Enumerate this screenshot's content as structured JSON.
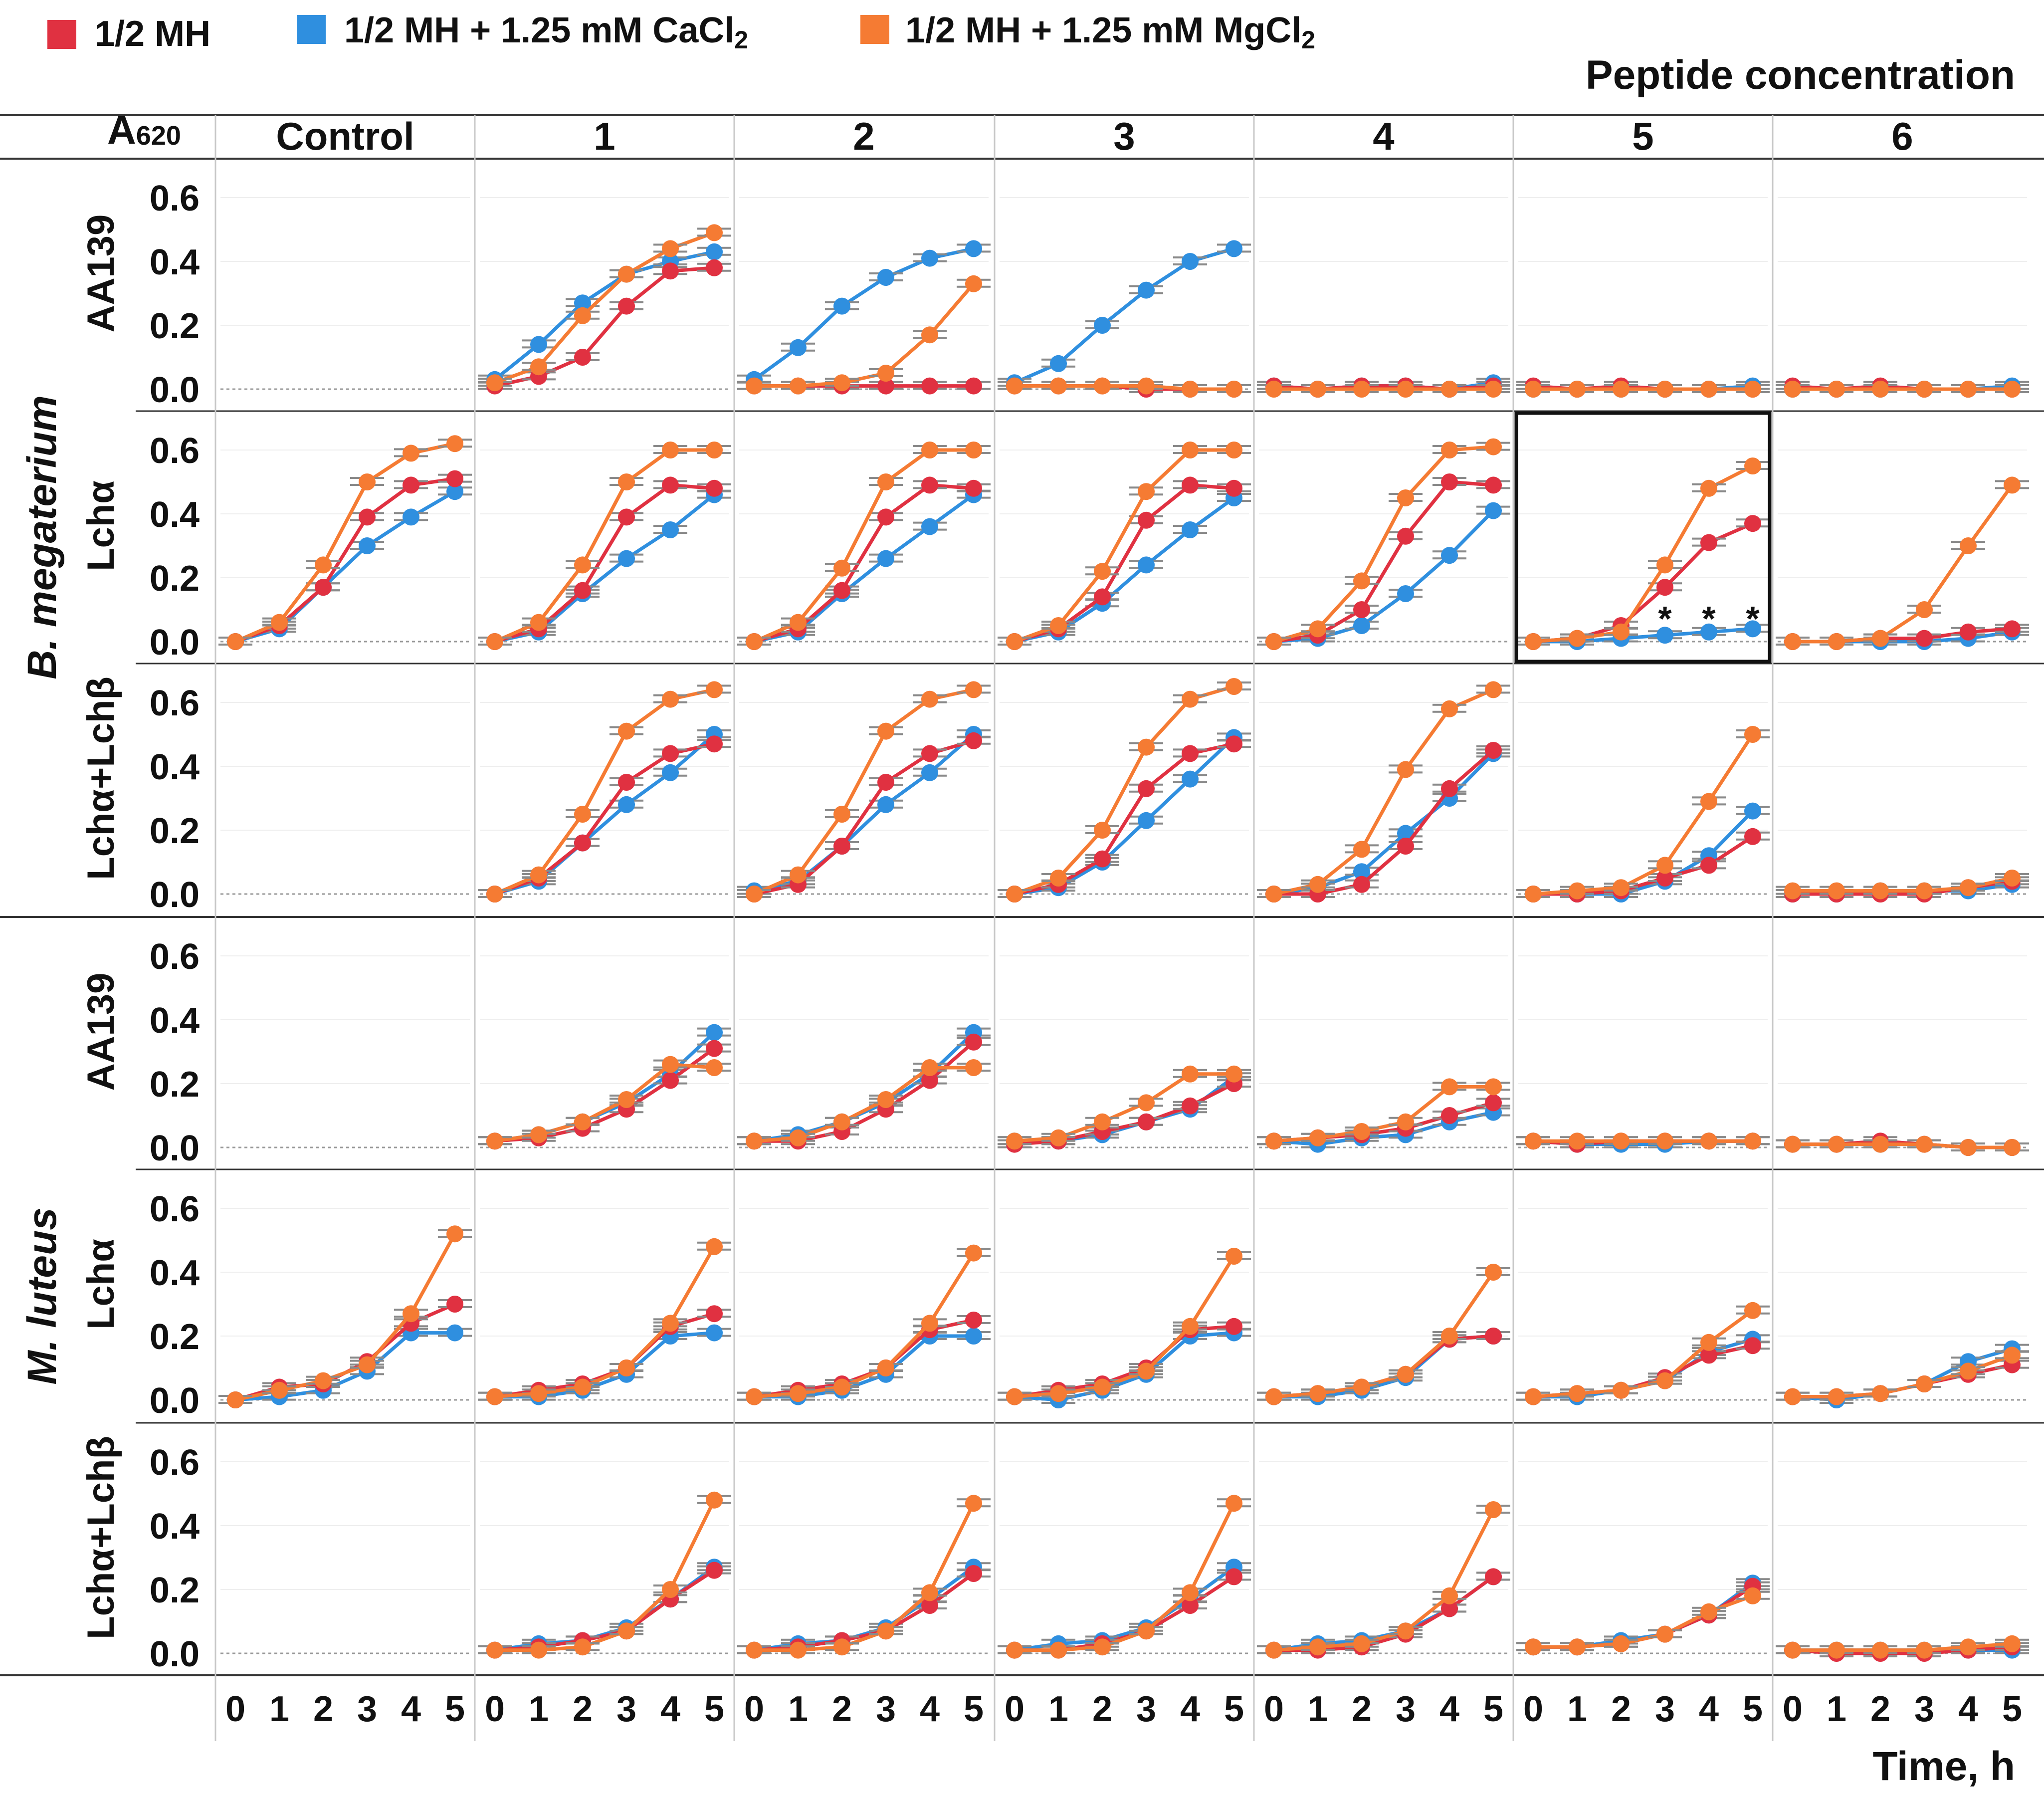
{
  "legend": [
    {
      "label": "1/2 MH",
      "label_sub": "",
      "color": "#e03141"
    },
    {
      "label": "1/2 MH + 1.25 mM CaCl",
      "label_sub": "2",
      "color": "#2f8fdf"
    },
    {
      "label": "1/2 MH + 1.25 mM MgCl",
      "label_sub": "2",
      "color": "#f57b33"
    }
  ],
  "header": {
    "y_label_main": "A",
    "y_label_sub": "620",
    "peptide_title": "Peptide concentration",
    "columns": [
      "Control",
      "1",
      "2",
      "3",
      "4",
      "5",
      "6"
    ]
  },
  "footer": {
    "x_ticks": [
      "0",
      "1",
      "2",
      "3",
      "4",
      "5"
    ],
    "x_title": "Time, h"
  },
  "y_ticks": [
    "0.6",
    "0.4",
    "0.2",
    "0.0"
  ],
  "organisms": [
    {
      "name": "B. megaterium",
      "rows": [
        0,
        1,
        2
      ]
    },
    {
      "name": "M. luteus",
      "rows": [
        3,
        4,
        5
      ]
    }
  ],
  "row_labels": [
    "AA139",
    "Lchα",
    "Lchα+Lchβ",
    "AA139",
    "Lchα",
    "Lchα+Lchβ"
  ],
  "highlight": {
    "row": 1,
    "col": 5,
    "annotation": "*",
    "annotation_x": [
      3,
      4,
      5
    ]
  },
  "chart_data": {
    "type": "line",
    "title": "",
    "xlabel": "Time, h",
    "ylabel": "A620",
    "x": [
      0,
      1,
      2,
      3,
      4,
      5
    ],
    "ylim": [
      -0.02,
      0.68
    ],
    "series_names": [
      "1/2 MH",
      "1/2 MH + 1.25 mM CaCl2",
      "1/2 MH + 1.25 mM MgCl2"
    ],
    "series_colors": [
      "#e03141",
      "#2f8fdf",
      "#f57b33"
    ],
    "panels": [
      {
        "row": 0,
        "col": 0,
        "series": null
      },
      {
        "row": 0,
        "col": 1,
        "series": [
          [
            0.01,
            0.04,
            0.1,
            0.26,
            0.37,
            0.38
          ],
          [
            0.03,
            0.14,
            0.27,
            0.36,
            0.4,
            0.43
          ],
          [
            0.02,
            0.07,
            0.23,
            0.36,
            0.44,
            0.49
          ]
        ]
      },
      {
        "row": 0,
        "col": 2,
        "series": [
          [
            0.01,
            0.01,
            0.01,
            0.01,
            0.01,
            0.01
          ],
          [
            0.03,
            0.13,
            0.26,
            0.35,
            0.41,
            0.44
          ],
          [
            0.01,
            0.01,
            0.02,
            0.05,
            0.17,
            0.33
          ]
        ]
      },
      {
        "row": 0,
        "col": 3,
        "series": [
          [
            0.01,
            0.01,
            0.01,
            0.0,
            0.0,
            0.0
          ],
          [
            0.02,
            0.08,
            0.2,
            0.31,
            0.4,
            0.44
          ],
          [
            0.01,
            0.01,
            0.01,
            0.01,
            0.0,
            0.0
          ]
        ]
      },
      {
        "row": 0,
        "col": 4,
        "series": [
          [
            0.01,
            0.0,
            0.01,
            0.01,
            0.0,
            0.01
          ],
          [
            0.01,
            0.0,
            0.01,
            0.01,
            0.0,
            0.02
          ],
          [
            0.0,
            0.0,
            0.0,
            0.0,
            0.0,
            0.0
          ]
        ]
      },
      {
        "row": 0,
        "col": 5,
        "series": [
          [
            0.01,
            0.0,
            0.01,
            0.0,
            0.0,
            0.0
          ],
          [
            0.0,
            0.0,
            0.0,
            0.0,
            0.0,
            0.01
          ],
          [
            0.0,
            0.0,
            0.0,
            0.0,
            0.0,
            0.0
          ]
        ]
      },
      {
        "row": 0,
        "col": 6,
        "series": [
          [
            0.01,
            0.0,
            0.01,
            0.0,
            0.0,
            0.0
          ],
          [
            0.0,
            0.0,
            0.0,
            0.0,
            0.0,
            0.01
          ],
          [
            0.0,
            0.0,
            0.0,
            0.0,
            0.0,
            0.0
          ]
        ]
      },
      {
        "row": 1,
        "col": 0,
        "series": [
          [
            0.0,
            0.05,
            0.17,
            0.39,
            0.49,
            0.51
          ],
          [
            0.0,
            0.04,
            0.17,
            0.3,
            0.39,
            0.47
          ],
          [
            0.0,
            0.06,
            0.24,
            0.5,
            0.59,
            0.62
          ]
        ]
      },
      {
        "row": 1,
        "col": 1,
        "series": [
          [
            0.0,
            0.04,
            0.16,
            0.39,
            0.49,
            0.48
          ],
          [
            0.0,
            0.03,
            0.15,
            0.26,
            0.35,
            0.46
          ],
          [
            0.0,
            0.06,
            0.24,
            0.5,
            0.6,
            0.6
          ]
        ]
      },
      {
        "row": 1,
        "col": 2,
        "series": [
          [
            0.0,
            0.04,
            0.16,
            0.39,
            0.49,
            0.48
          ],
          [
            0.0,
            0.03,
            0.15,
            0.26,
            0.36,
            0.46
          ],
          [
            0.0,
            0.06,
            0.23,
            0.5,
            0.6,
            0.6
          ]
        ]
      },
      {
        "row": 1,
        "col": 3,
        "series": [
          [
            0.0,
            0.04,
            0.14,
            0.38,
            0.49,
            0.48
          ],
          [
            0.0,
            0.03,
            0.12,
            0.24,
            0.35,
            0.45
          ],
          [
            0.0,
            0.05,
            0.22,
            0.47,
            0.6,
            0.6
          ]
        ]
      },
      {
        "row": 1,
        "col": 4,
        "series": [
          [
            0.0,
            0.02,
            0.1,
            0.33,
            0.5,
            0.49
          ],
          [
            0.0,
            0.01,
            0.05,
            0.15,
            0.27,
            0.41
          ],
          [
            0.0,
            0.04,
            0.19,
            0.45,
            0.6,
            0.61
          ]
        ]
      },
      {
        "row": 1,
        "col": 5,
        "series": [
          [
            0.0,
            0.01,
            0.05,
            0.17,
            0.31,
            0.37
          ],
          [
            0.0,
            0.0,
            0.01,
            0.02,
            0.03,
            0.04
          ],
          [
            0.0,
            0.01,
            0.03,
            0.24,
            0.48,
            0.55
          ]
        ]
      },
      {
        "row": 1,
        "col": 6,
        "series": [
          [
            0.0,
            0.0,
            0.01,
            0.01,
            0.03,
            0.04
          ],
          [
            0.0,
            0.0,
            0.0,
            0.0,
            0.01,
            0.03
          ],
          [
            0.0,
            0.0,
            0.01,
            0.1,
            0.3,
            0.49
          ]
        ]
      },
      {
        "row": 2,
        "col": 0,
        "series": null
      },
      {
        "row": 2,
        "col": 1,
        "series": [
          [
            0.0,
            0.05,
            0.16,
            0.35,
            0.44,
            0.47
          ],
          [
            0.0,
            0.04,
            0.16,
            0.28,
            0.38,
            0.5
          ],
          [
            0.0,
            0.06,
            0.25,
            0.51,
            0.61,
            0.64
          ]
        ]
      },
      {
        "row": 2,
        "col": 2,
        "series": [
          [
            0.0,
            0.03,
            0.15,
            0.35,
            0.44,
            0.48
          ],
          [
            0.01,
            0.04,
            0.15,
            0.28,
            0.38,
            0.5
          ],
          [
            0.0,
            0.06,
            0.25,
            0.51,
            0.61,
            0.64
          ]
        ]
      },
      {
        "row": 2,
        "col": 3,
        "series": [
          [
            0.0,
            0.03,
            0.11,
            0.33,
            0.44,
            0.47
          ],
          [
            0.0,
            0.02,
            0.1,
            0.23,
            0.36,
            0.49
          ],
          [
            0.0,
            0.05,
            0.2,
            0.46,
            0.61,
            0.65
          ]
        ]
      },
      {
        "row": 2,
        "col": 4,
        "series": [
          [
            0.0,
            0.0,
            0.03,
            0.15,
            0.33,
            0.45
          ],
          [
            0.0,
            0.02,
            0.07,
            0.19,
            0.3,
            0.44
          ],
          [
            0.0,
            0.03,
            0.14,
            0.39,
            0.58,
            0.64
          ]
        ]
      },
      {
        "row": 2,
        "col": 5,
        "series": [
          [
            0.0,
            0.0,
            0.01,
            0.05,
            0.09,
            0.18
          ],
          [
            0.0,
            0.0,
            0.0,
            0.04,
            0.12,
            0.26
          ],
          [
            0.0,
            0.01,
            0.02,
            0.09,
            0.29,
            0.5
          ]
        ]
      },
      {
        "row": 2,
        "col": 6,
        "series": [
          [
            0.0,
            0.0,
            0.0,
            0.0,
            0.02,
            0.04
          ],
          [
            0.0,
            0.0,
            0.01,
            0.01,
            0.01,
            0.03
          ],
          [
            0.01,
            0.01,
            0.01,
            0.01,
            0.02,
            0.05
          ]
        ]
      },
      {
        "row": 3,
        "col": 0,
        "series": null
      },
      {
        "row": 3,
        "col": 1,
        "series": [
          [
            0.02,
            0.03,
            0.06,
            0.12,
            0.21,
            0.31
          ],
          [
            0.02,
            0.04,
            0.08,
            0.14,
            0.23,
            0.36
          ],
          [
            0.02,
            0.04,
            0.08,
            0.15,
            0.26,
            0.25
          ]
        ]
      },
      {
        "row": 3,
        "col": 2,
        "series": [
          [
            0.02,
            0.02,
            0.05,
            0.12,
            0.21,
            0.33
          ],
          [
            0.02,
            0.04,
            0.08,
            0.14,
            0.23,
            0.36
          ],
          [
            0.02,
            0.03,
            0.08,
            0.15,
            0.25,
            0.25
          ]
        ]
      },
      {
        "row": 3,
        "col": 3,
        "series": [
          [
            0.01,
            0.02,
            0.05,
            0.08,
            0.13,
            0.2
          ],
          [
            0.02,
            0.02,
            0.04,
            0.08,
            0.12,
            0.22
          ],
          [
            0.02,
            0.03,
            0.08,
            0.14,
            0.23,
            0.23
          ]
        ]
      },
      {
        "row": 3,
        "col": 4,
        "series": [
          [
            0.02,
            0.03,
            0.04,
            0.06,
            0.1,
            0.14
          ],
          [
            0.02,
            0.01,
            0.03,
            0.04,
            0.08,
            0.11
          ],
          [
            0.02,
            0.03,
            0.05,
            0.08,
            0.19,
            0.19
          ]
        ]
      },
      {
        "row": 3,
        "col": 5,
        "series": [
          [
            0.02,
            0.01,
            0.02,
            0.02,
            0.02,
            0.02
          ],
          [
            0.02,
            0.01,
            0.01,
            0.01,
            0.02,
            0.02
          ],
          [
            0.02,
            0.02,
            0.02,
            0.02,
            0.02,
            0.02
          ]
        ]
      },
      {
        "row": 3,
        "col": 6,
        "series": [
          [
            0.01,
            0.01,
            0.02,
            0.01,
            0.0,
            0.0
          ],
          [
            0.01,
            0.01,
            0.01,
            0.01,
            0.0,
            0.0
          ],
          [
            0.01,
            0.01,
            0.01,
            0.01,
            0.0,
            0.0
          ]
        ]
      },
      {
        "row": 4,
        "col": 0,
        "series": [
          [
            0.0,
            0.04,
            0.05,
            0.12,
            0.24,
            0.3
          ],
          [
            0.0,
            0.01,
            0.03,
            0.09,
            0.21,
            0.21
          ],
          [
            0.0,
            0.03,
            0.06,
            0.11,
            0.27,
            0.52
          ]
        ]
      },
      {
        "row": 4,
        "col": 1,
        "series": [
          [
            0.01,
            0.03,
            0.05,
            0.1,
            0.23,
            0.27
          ],
          [
            0.01,
            0.01,
            0.03,
            0.08,
            0.2,
            0.21
          ],
          [
            0.01,
            0.02,
            0.04,
            0.1,
            0.24,
            0.48
          ]
        ]
      },
      {
        "row": 4,
        "col": 2,
        "series": [
          [
            0.01,
            0.03,
            0.05,
            0.1,
            0.22,
            0.25
          ],
          [
            0.01,
            0.01,
            0.03,
            0.08,
            0.2,
            0.2
          ],
          [
            0.01,
            0.02,
            0.04,
            0.1,
            0.24,
            0.46
          ]
        ]
      },
      {
        "row": 4,
        "col": 3,
        "series": [
          [
            0.01,
            0.03,
            0.05,
            0.1,
            0.22,
            0.23
          ],
          [
            0.01,
            0.0,
            0.03,
            0.08,
            0.2,
            0.21
          ],
          [
            0.01,
            0.02,
            0.04,
            0.09,
            0.23,
            0.45
          ]
        ]
      },
      {
        "row": 4,
        "col": 4,
        "series": [
          [
            0.01,
            0.02,
            0.04,
            0.08,
            0.19,
            0.2
          ],
          [
            0.01,
            0.01,
            0.03,
            0.07,
            0.19,
            0.2
          ],
          [
            0.01,
            0.02,
            0.04,
            0.08,
            0.2,
            0.4
          ]
        ]
      },
      {
        "row": 4,
        "col": 5,
        "series": [
          [
            0.01,
            0.02,
            0.03,
            0.07,
            0.14,
            0.17
          ],
          [
            0.01,
            0.01,
            0.03,
            0.06,
            0.15,
            0.19
          ],
          [
            0.01,
            0.02,
            0.03,
            0.06,
            0.18,
            0.28
          ]
        ]
      },
      {
        "row": 4,
        "col": 6,
        "series": [
          [
            0.01,
            0.01,
            0.02,
            0.05,
            0.08,
            0.11
          ],
          [
            0.01,
            0.0,
            0.02,
            0.05,
            0.12,
            0.16
          ],
          [
            0.01,
            0.01,
            0.02,
            0.05,
            0.09,
            0.14
          ]
        ]
      },
      {
        "row": 5,
        "col": 0,
        "series": null
      },
      {
        "row": 5,
        "col": 1,
        "series": [
          [
            0.01,
            0.02,
            0.04,
            0.07,
            0.17,
            0.26
          ],
          [
            0.01,
            0.03,
            0.04,
            0.08,
            0.17,
            0.27
          ],
          [
            0.01,
            0.01,
            0.02,
            0.07,
            0.2,
            0.48
          ]
        ]
      },
      {
        "row": 5,
        "col": 2,
        "series": [
          [
            0.01,
            0.02,
            0.04,
            0.07,
            0.15,
            0.25
          ],
          [
            0.01,
            0.03,
            0.04,
            0.08,
            0.17,
            0.27
          ],
          [
            0.01,
            0.01,
            0.02,
            0.07,
            0.19,
            0.47
          ]
        ]
      },
      {
        "row": 5,
        "col": 3,
        "series": [
          [
            0.01,
            0.01,
            0.03,
            0.07,
            0.15,
            0.24
          ],
          [
            0.01,
            0.03,
            0.04,
            0.08,
            0.17,
            0.27
          ],
          [
            0.01,
            0.01,
            0.02,
            0.07,
            0.19,
            0.47
          ]
        ]
      },
      {
        "row": 5,
        "col": 4,
        "series": [
          [
            0.01,
            0.01,
            0.02,
            0.06,
            0.14,
            0.24
          ],
          [
            0.01,
            0.03,
            0.04,
            0.07,
            0.14,
            0.24
          ],
          [
            0.01,
            0.02,
            0.03,
            0.07,
            0.18,
            0.45
          ]
        ]
      },
      {
        "row": 5,
        "col": 5,
        "series": [
          [
            0.02,
            0.02,
            0.03,
            0.06,
            0.12,
            0.21
          ],
          [
            0.02,
            0.02,
            0.04,
            0.06,
            0.12,
            0.22
          ],
          [
            0.02,
            0.02,
            0.03,
            0.06,
            0.13,
            0.18
          ]
        ]
      },
      {
        "row": 5,
        "col": 6,
        "series": [
          [
            0.01,
            0.0,
            0.0,
            0.0,
            0.01,
            0.02
          ],
          [
            0.01,
            0.01,
            0.01,
            0.01,
            0.01,
            0.01
          ],
          [
            0.01,
            0.01,
            0.01,
            0.01,
            0.02,
            0.03
          ]
        ]
      }
    ]
  }
}
